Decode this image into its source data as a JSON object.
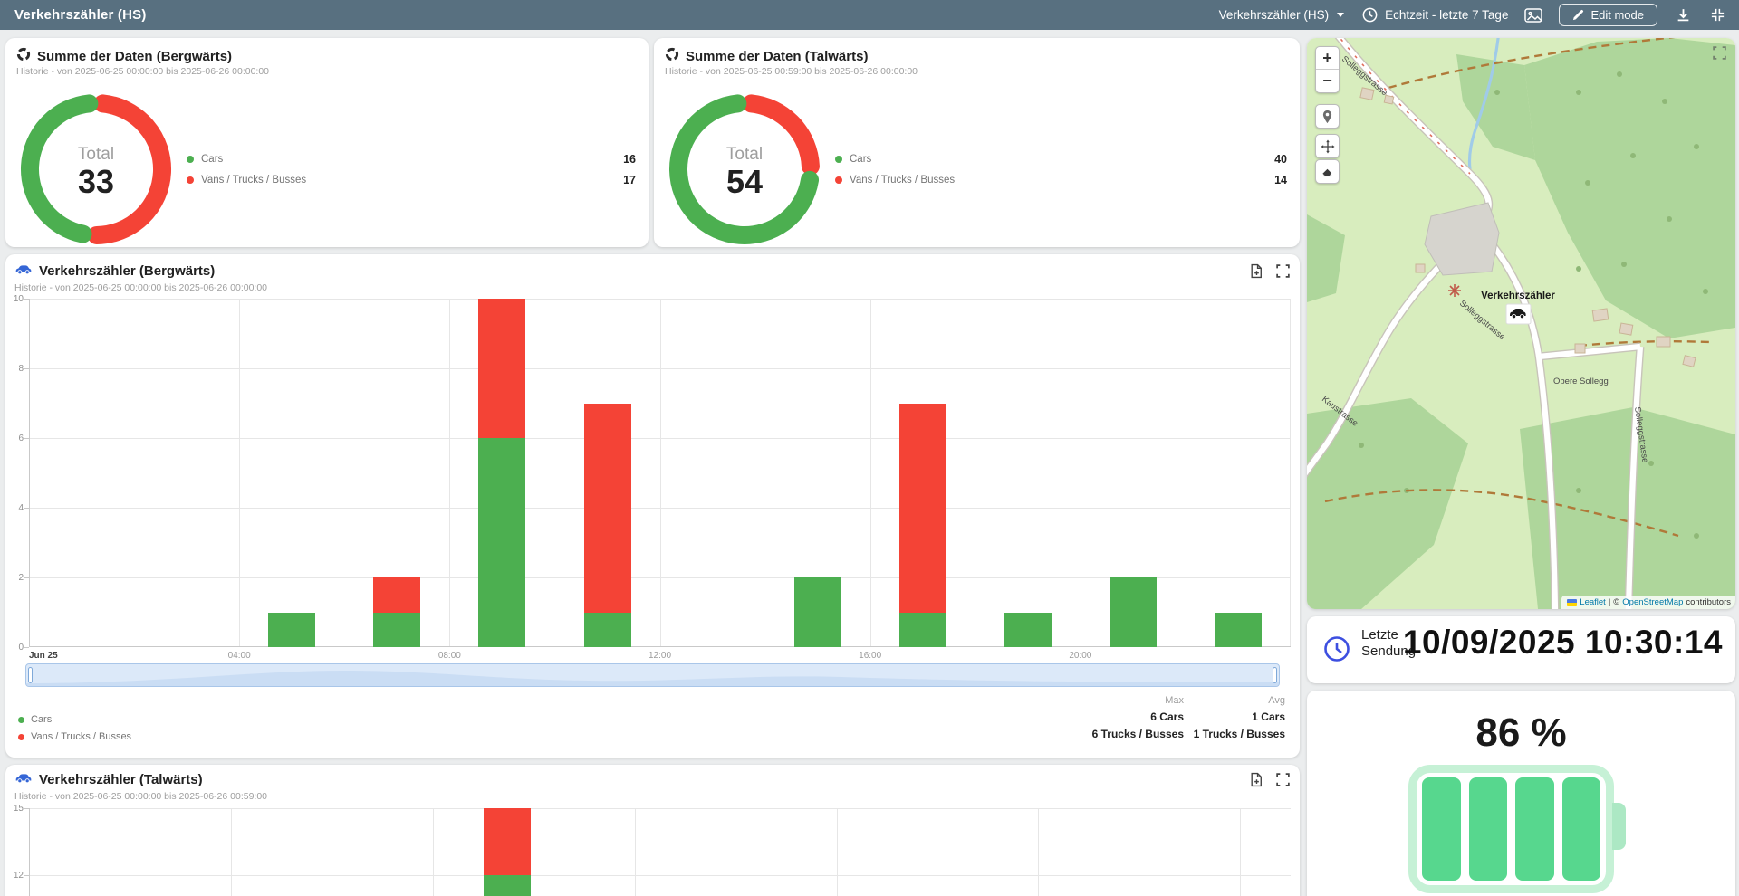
{
  "header": {
    "title": "Verkehrszähler (HS)",
    "dashboard_select": "Verkehrszähler (HS)",
    "timewindow": "Echtzeit - letzte 7 Tage",
    "edit_mode": "Edit mode"
  },
  "colors": {
    "header_bg": "#587080",
    "cars_green": "#4caf50",
    "vans_red": "#f44336",
    "battery_fill": "#57d78e",
    "battery_shell": "#c6f1d6",
    "title_icon_blue": "#3566d6",
    "clock_blue": "#3d4fe0"
  },
  "icons": [
    "donut-chart-icon",
    "car-icon",
    "export-file-icon",
    "fullscreen-icon",
    "clock-icon",
    "screenshot-icon",
    "pencil-icon",
    "download-icon",
    "collapse-icon",
    "zoom-in-icon",
    "zoom-out-icon",
    "pin-icon",
    "move-icon",
    "eraser-icon",
    "expand-icon",
    "leaflet-flag-icon"
  ],
  "donuts": [
    {
      "title": "Summe der Daten (Bergwärts)",
      "subtitle": "Historie - von 2025-06-25 00:00:00 bis 2025-06-26 00:00:00",
      "total_label": "Total",
      "total": "33",
      "legend": [
        {
          "label": "Cars",
          "value": "16"
        },
        {
          "label": "Vans / Trucks / Busses",
          "value": "17"
        }
      ]
    },
    {
      "title": "Summe der Daten (Talwärts)",
      "subtitle": "Historie - von 2025-06-25 00:59:00 bis 2025-06-26 00:00:00",
      "total_label": "Total",
      "total": "54",
      "legend": [
        {
          "label": "Cars",
          "value": "40"
        },
        {
          "label": "Vans / Trucks / Busses",
          "value": "14"
        }
      ]
    }
  ],
  "charts": [
    {
      "title": "Verkehrszähler (Bergwärts)",
      "subtitle": "Historie - von 2025-06-25 00:00:00 bis 2025-06-26 00:00:00",
      "legend": [
        "Cars",
        "Vans / Trucks / Busses"
      ],
      "stats": {
        "headers": [
          "Max",
          "Avg"
        ],
        "rows": [
          [
            "6 Cars",
            "1 Cars"
          ],
          [
            "6 Trucks / Busses",
            "1 Trucks / Busses"
          ]
        ]
      }
    },
    {
      "title": "Verkehrszähler (Talwärts)",
      "subtitle": "Historie - von 2025-06-25 00:00:00 bis 2025-06-26 00:59:00"
    }
  ],
  "chart_data": [
    {
      "type": "pie",
      "title": "Summe der Daten (Bergwärts)",
      "labels": [
        "Cars",
        "Vans / Trucks / Busses"
      ],
      "values": [
        16,
        17
      ],
      "total": 33,
      "colors": [
        "#4caf50",
        "#f44336"
      ]
    },
    {
      "type": "pie",
      "title": "Summe der Daten (Talwärts)",
      "labels": [
        "Cars",
        "Vans / Trucks / Busses"
      ],
      "values": [
        40,
        14
      ],
      "total": 54,
      "colors": [
        "#4caf50",
        "#f44336"
      ]
    },
    {
      "type": "bar",
      "stacked": true,
      "title": "Verkehrszähler (Bergwärts)",
      "x_hours": [
        5,
        7,
        9,
        11,
        15,
        17,
        19,
        21,
        23
      ],
      "x_span_hours": 24,
      "series": [
        {
          "name": "Cars",
          "color": "#4caf50",
          "values": [
            1,
            1,
            6,
            1,
            2,
            1,
            1,
            2,
            1
          ]
        },
        {
          "name": "Vans / Trucks / Busses",
          "color": "#f44336",
          "values": [
            0,
            1,
            4,
            6,
            0,
            6,
            0,
            0,
            0
          ]
        }
      ],
      "ylim": [
        0,
        10
      ],
      "yticks": [
        0,
        2,
        4,
        6,
        8,
        10
      ],
      "xticks": [
        {
          "pos": 0,
          "label": "Jun 25",
          "strong": true
        },
        {
          "pos": 4,
          "label": "04:00"
        },
        {
          "pos": 8,
          "label": "08:00"
        },
        {
          "pos": 12,
          "label": "12:00"
        },
        {
          "pos": 16,
          "label": "16:00"
        },
        {
          "pos": 20,
          "label": "20:00"
        }
      ],
      "max": {
        "cars": 6,
        "vans": 6
      },
      "avg": {
        "cars": 1,
        "vans": 1
      }
    },
    {
      "type": "bar",
      "stacked": true,
      "title": "Verkehrszähler (Talwärts)",
      "partial": true,
      "x_hours": [
        9
      ],
      "x_span_hours": 25,
      "series": [
        {
          "name": "Cars",
          "color": "#4caf50",
          "values": [
            12
          ]
        },
        {
          "name": "Vans / Trucks / Busses",
          "color": "#f44336",
          "values": [
            3
          ]
        }
      ],
      "yticks_visible": [
        15,
        12
      ]
    }
  ],
  "map": {
    "marker_label": "Verkehrszähler",
    "street_labels": [
      "Solleggstrasse",
      "Solleggstrasse",
      "Obere Sollegg",
      "Kaustrasse",
      "Solleggstrasse"
    ],
    "attribution": {
      "leaflet": "Leaflet",
      "separator": "|",
      "copy": "©",
      "osm": "OpenStreetMap",
      "suffix": "contributors"
    }
  },
  "last_transmission": {
    "label_line1": "Letzte",
    "label_line2": "Sendung",
    "value": "10/09/2025 10:30:14"
  },
  "battery": {
    "label": "86 %",
    "segments": 4
  }
}
